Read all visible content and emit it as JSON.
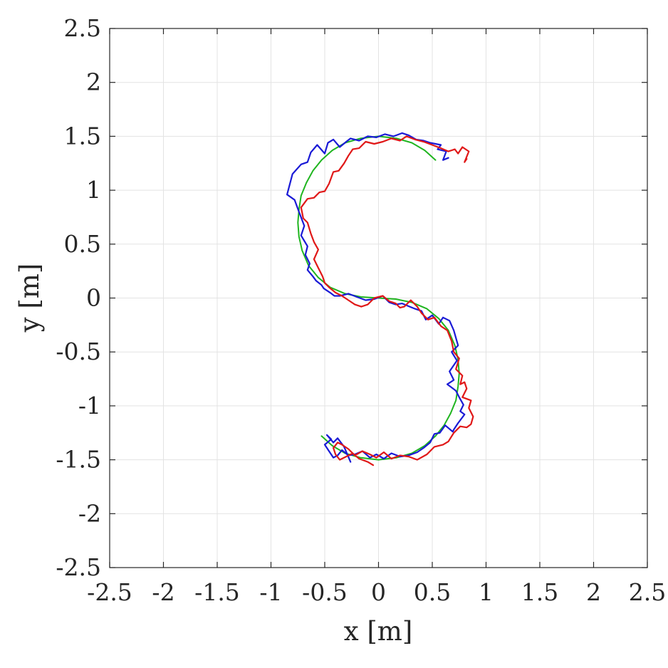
{
  "chart_data": {
    "type": "line",
    "title": "",
    "xlabel": "x [m]",
    "ylabel": "y [m]",
    "xlim": [
      -2.5,
      2.5
    ],
    "ylim": [
      -2.5,
      2.5
    ],
    "grid": true,
    "xticks": [
      "-2.5",
      "-2",
      "-1.5",
      "-1",
      "-0.5",
      "0",
      "0.5",
      "1",
      "1.5",
      "2",
      "2.5"
    ],
    "yticks": [
      "2.5",
      "2",
      "1.5",
      "1",
      "0.5",
      "0",
      "-0.5",
      "-1",
      "-1.5",
      "-2",
      "-2.5"
    ],
    "series": [
      {
        "color": "#1fb51f",
        "x": [
          0.53,
          0.43,
          0.31,
          0.17,
          0.0,
          -0.17,
          -0.31,
          -0.43,
          -0.53,
          -0.61,
          -0.67,
          -0.72,
          -0.74,
          -0.75,
          -0.74,
          -0.71,
          -0.65,
          -0.56,
          -0.45,
          -0.31,
          -0.16,
          0.0,
          0.16,
          0.31,
          0.45,
          0.56,
          0.65,
          0.71,
          0.74,
          0.75,
          0.74,
          0.72,
          0.67,
          0.61,
          0.53,
          0.43,
          0.31,
          0.17,
          0.0,
          -0.17,
          -0.31,
          -0.43,
          -0.53
        ],
        "y": [
          1.28,
          1.37,
          1.44,
          1.48,
          1.5,
          1.48,
          1.44,
          1.37,
          1.28,
          1.18,
          1.07,
          0.95,
          0.82,
          0.7,
          0.57,
          0.44,
          0.3,
          0.19,
          0.1,
          0.04,
          0.01,
          0.0,
          -0.01,
          -0.04,
          -0.1,
          -0.19,
          -0.3,
          -0.44,
          -0.57,
          -0.7,
          -0.82,
          -0.95,
          -1.07,
          -1.18,
          -1.28,
          -1.37,
          -1.44,
          -1.48,
          -1.5,
          -1.48,
          -1.44,
          -1.37,
          -1.28
        ]
      },
      {
        "color": "#1a1ad6",
        "x": [
          0.65,
          0.6,
          0.63,
          0.55,
          0.58,
          0.48,
          0.42,
          0.35,
          0.28,
          0.22,
          0.14,
          0.06,
          -0.02,
          -0.1,
          -0.18,
          -0.26,
          -0.3,
          -0.36,
          -0.42,
          -0.47,
          -0.5,
          -0.57,
          -0.63,
          -0.66,
          -0.72,
          -0.8,
          -0.85,
          -0.78,
          -0.74,
          -0.69,
          -0.72,
          -0.66,
          -0.68,
          -0.64,
          -0.66,
          -0.61,
          -0.58,
          -0.53,
          -0.51,
          -0.45,
          -0.41,
          -0.36,
          -0.28,
          -0.2,
          -0.12,
          -0.04,
          0.04,
          0.1,
          0.16,
          0.22,
          0.29,
          0.34,
          0.4,
          0.44,
          0.5,
          0.56,
          0.6,
          0.66,
          0.7,
          0.74,
          0.68,
          0.73,
          0.66,
          0.7,
          0.64,
          0.72,
          0.75,
          0.79,
          0.76,
          0.8,
          0.74,
          0.7,
          0.69,
          0.62,
          0.57,
          0.52,
          0.48,
          0.42,
          0.36,
          0.28,
          0.2,
          0.12,
          0.05,
          -0.02,
          -0.08,
          -0.15,
          -0.22,
          -0.28,
          -0.34,
          -0.38,
          -0.42,
          -0.46,
          -0.5,
          -0.44,
          -0.48,
          -0.42,
          -0.38,
          -0.32,
          -0.26
        ],
        "y": [
          1.3,
          1.28,
          1.36,
          1.38,
          1.42,
          1.44,
          1.46,
          1.47,
          1.51,
          1.53,
          1.5,
          1.52,
          1.49,
          1.5,
          1.46,
          1.48,
          1.45,
          1.4,
          1.47,
          1.44,
          1.34,
          1.42,
          1.35,
          1.26,
          1.24,
          1.15,
          0.96,
          0.91,
          0.8,
          0.67,
          0.58,
          0.48,
          0.4,
          0.32,
          0.26,
          0.2,
          0.16,
          0.12,
          0.09,
          0.05,
          0.02,
          0.02,
          0.04,
          0.01,
          -0.02,
          -0.01,
          0.02,
          -0.04,
          -0.06,
          -0.05,
          -0.08,
          -0.1,
          -0.12,
          -0.2,
          -0.16,
          -0.24,
          -0.18,
          -0.21,
          -0.3,
          -0.44,
          -0.5,
          -0.58,
          -0.68,
          -0.76,
          -0.8,
          -0.86,
          -0.92,
          -0.99,
          -1.05,
          -1.08,
          -1.16,
          -1.22,
          -1.24,
          -1.18,
          -1.25,
          -1.26,
          -1.34,
          -1.39,
          -1.43,
          -1.46,
          -1.47,
          -1.44,
          -1.49,
          -1.45,
          -1.48,
          -1.42,
          -1.45,
          -1.46,
          -1.41,
          -1.46,
          -1.48,
          -1.42,
          -1.36,
          -1.31,
          -1.27,
          -1.34,
          -1.3,
          -1.38,
          -1.52
        ]
      },
      {
        "color": "#e01818",
        "x": [
          0.82,
          0.8,
          0.84,
          0.78,
          0.74,
          0.71,
          0.65,
          0.58,
          0.5,
          0.42,
          0.34,
          0.26,
          0.2,
          0.12,
          0.04,
          -0.04,
          -0.12,
          -0.18,
          -0.24,
          -0.28,
          -0.32,
          -0.37,
          -0.42,
          -0.46,
          -0.5,
          -0.55,
          -0.6,
          -0.66,
          -0.72,
          -0.7,
          -0.66,
          -0.63,
          -0.6,
          -0.56,
          -0.6,
          -0.56,
          -0.52,
          -0.5,
          -0.46,
          -0.4,
          -0.34,
          -0.28,
          -0.22,
          -0.16,
          -0.1,
          -0.04,
          0.04,
          0.1,
          0.16,
          0.2,
          0.24,
          0.3,
          0.36,
          0.4,
          0.46,
          0.52,
          0.58,
          0.64,
          0.68,
          0.7,
          0.75,
          0.72,
          0.78,
          0.76,
          0.8,
          0.82,
          0.78,
          0.86,
          0.84,
          0.86,
          0.88,
          0.86,
          0.82,
          0.76,
          0.7,
          0.65,
          0.6,
          0.52,
          0.45,
          0.36,
          0.28,
          0.2,
          0.12,
          0.05,
          -0.02,
          -0.08,
          -0.15,
          -0.22,
          -0.28,
          -0.34,
          -0.38,
          -0.42,
          -0.4,
          -0.36,
          -0.3,
          -0.24,
          -0.18,
          -0.1,
          -0.05
        ],
        "y": [
          1.29,
          1.26,
          1.36,
          1.4,
          1.34,
          1.38,
          1.36,
          1.39,
          1.42,
          1.45,
          1.47,
          1.5,
          1.46,
          1.48,
          1.45,
          1.43,
          1.45,
          1.39,
          1.38,
          1.32,
          1.25,
          1.18,
          1.17,
          1.06,
          0.99,
          0.98,
          0.93,
          0.92,
          0.84,
          0.74,
          0.7,
          0.6,
          0.52,
          0.45,
          0.36,
          0.28,
          0.2,
          0.14,
          0.1,
          0.05,
          0.02,
          -0.02,
          -0.06,
          -0.08,
          -0.06,
          0.0,
          0.02,
          -0.03,
          -0.05,
          -0.09,
          -0.08,
          -0.02,
          -0.08,
          -0.14,
          -0.2,
          -0.18,
          -0.26,
          -0.3,
          -0.4,
          -0.5,
          -0.56,
          -0.66,
          -0.72,
          -0.8,
          -0.78,
          -0.84,
          -0.92,
          -0.95,
          -1.02,
          -1.06,
          -1.1,
          -1.17,
          -1.2,
          -1.19,
          -1.25,
          -1.33,
          -1.36,
          -1.38,
          -1.45,
          -1.5,
          -1.47,
          -1.46,
          -1.49,
          -1.43,
          -1.48,
          -1.45,
          -1.42,
          -1.46,
          -1.4,
          -1.36,
          -1.34,
          -1.39,
          -1.45,
          -1.5,
          -1.47,
          -1.44,
          -1.49,
          -1.52,
          -1.55
        ]
      }
    ]
  }
}
